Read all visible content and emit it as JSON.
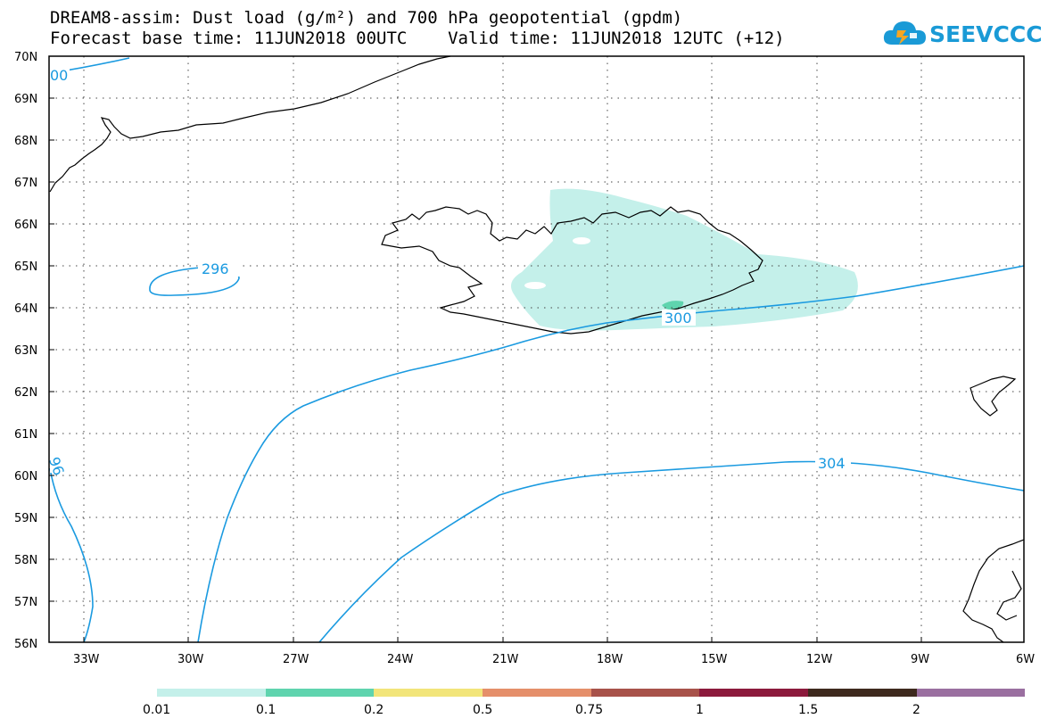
{
  "header": {
    "title_line1": "DREAM8-assim: Dust load (g/m²) and 700 hPa geopotential (gpdm)",
    "title_line2": "Forecast base time: 11JUN2018 00UTC    Valid time: 11JUN2018 12UTC (+12)"
  },
  "logo": {
    "text": "SEEVCCC",
    "icon": "cloud-icon",
    "color": "#1a9ad6"
  },
  "map": {
    "lat_labels": [
      "70N",
      "69N",
      "68N",
      "67N",
      "66N",
      "65N",
      "64N",
      "63N",
      "62N",
      "61N",
      "60N",
      "59N",
      "58N",
      "57N",
      "56N"
    ],
    "lon_labels": [
      "33W",
      "30W",
      "27W",
      "24W",
      "21W",
      "18W",
      "15W",
      "12W",
      "9W",
      "6W"
    ],
    "contour_labels": [
      "296",
      "300",
      "304",
      "00",
      "96"
    ],
    "contour_color": "#1a9ae0",
    "dust_color": "#c4f0ea",
    "dust_core_color": "#5fd4ae"
  },
  "colorbar": {
    "labels": [
      "0.01",
      "0.1",
      "0.2",
      "0.5",
      "0.75",
      "1",
      "1.5",
      "2"
    ],
    "colors": [
      "#c4f0ea",
      "#5fd4ae",
      "#f2e57a",
      "#e58f6a",
      "#a8524a",
      "#8c1a3c",
      "#3e2a1e",
      "#9a6fa0"
    ]
  }
}
